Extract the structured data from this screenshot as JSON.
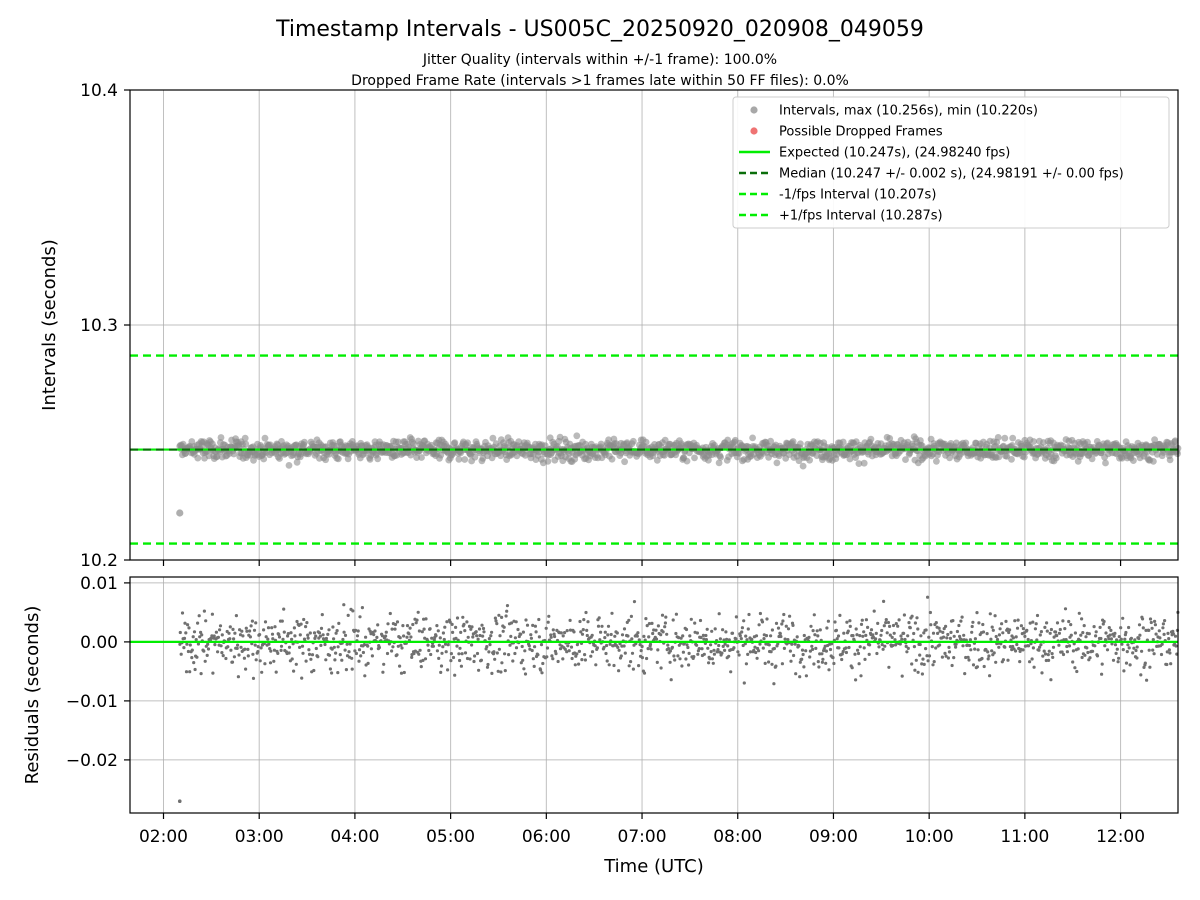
{
  "chart_data": {
    "type": "scatter",
    "title": "Timestamp Intervals - US005C_20250920_020908_049059",
    "subtitle_lines": [
      "Jitter Quality (intervals within +/-1 frame): 100.0%",
      "Dropped Frame Rate (intervals >1 frames late within 50 FF files): 0.0%"
    ],
    "xlabel": "Time (UTC)",
    "x_unit": "hours (UTC)",
    "xlim": [
      1.65,
      12.6
    ],
    "x_ticks": [
      2,
      3,
      4,
      5,
      6,
      7,
      8,
      9,
      10,
      11,
      12
    ],
    "x_tick_labels": [
      "02:00",
      "03:00",
      "04:00",
      "05:00",
      "06:00",
      "07:00",
      "08:00",
      "09:00",
      "10:00",
      "11:00",
      "12:00"
    ],
    "colors": {
      "points": "#8c8c8c",
      "residual_points": "#707070",
      "dropped": "#e8392e",
      "expected": "#00ee00",
      "median": "#0a6e0a",
      "bounds": "#00ee00",
      "grid": "#b0b0b0"
    },
    "intervals_panel": {
      "ylabel": "Intervals (seconds)",
      "ylim": [
        10.2,
        10.4
      ],
      "y_ticks": [
        10.2,
        10.3,
        10.4
      ],
      "y_tick_labels": [
        "10.2",
        "10.3",
        "10.4"
      ],
      "expected": 10.247,
      "median": 10.247,
      "lower_bound": 10.207,
      "upper_bound": 10.287,
      "max": 10.256,
      "min": 10.22,
      "outliers": [
        {
          "x": 2.17,
          "y": 10.22
        }
      ],
      "series": [
        {
          "name": "intervals",
          "x_start": 2.17,
          "x_end": 12.6,
          "count": 1500,
          "center": 10.247,
          "spread": 0.0022
        }
      ]
    },
    "residuals_panel": {
      "ylabel": "Residuals (seconds)",
      "ylim": [
        -0.029,
        0.011
      ],
      "y_ticks": [
        0.01,
        0.0,
        -0.01,
        -0.02
      ],
      "y_tick_labels": [
        "0.01",
        "0.00",
        "−0.01",
        "−0.02"
      ],
      "outliers": [
        {
          "x": 2.17,
          "y": -0.027
        }
      ],
      "series": [
        {
          "name": "residuals",
          "x_start": 2.17,
          "x_end": 12.6,
          "count": 1500,
          "center": 0.0,
          "spread": 0.0024
        }
      ]
    },
    "legend": {
      "position": "top-right",
      "entries": [
        {
          "label": "Intervals, max (10.256s), min (10.220s)",
          "marker": "circle",
          "color": "#999999"
        },
        {
          "label": "Possible Dropped Frames",
          "marker": "circle",
          "color": "#ec5a5a"
        },
        {
          "label": "Expected (10.247s), (24.98240 fps)",
          "marker": "solid",
          "color": "#00ee00"
        },
        {
          "label": "Median (10.247 +/- 0.002 s), (24.98191 +/- 0.00 fps)",
          "marker": "dashed",
          "color": "#0a6e0a"
        },
        {
          "label": "-1/fps Interval (10.207s)",
          "marker": "dashed",
          "color": "#00ee00"
        },
        {
          "label": "+1/fps Interval (10.287s)",
          "marker": "dashed",
          "color": "#00ee00"
        }
      ]
    }
  }
}
